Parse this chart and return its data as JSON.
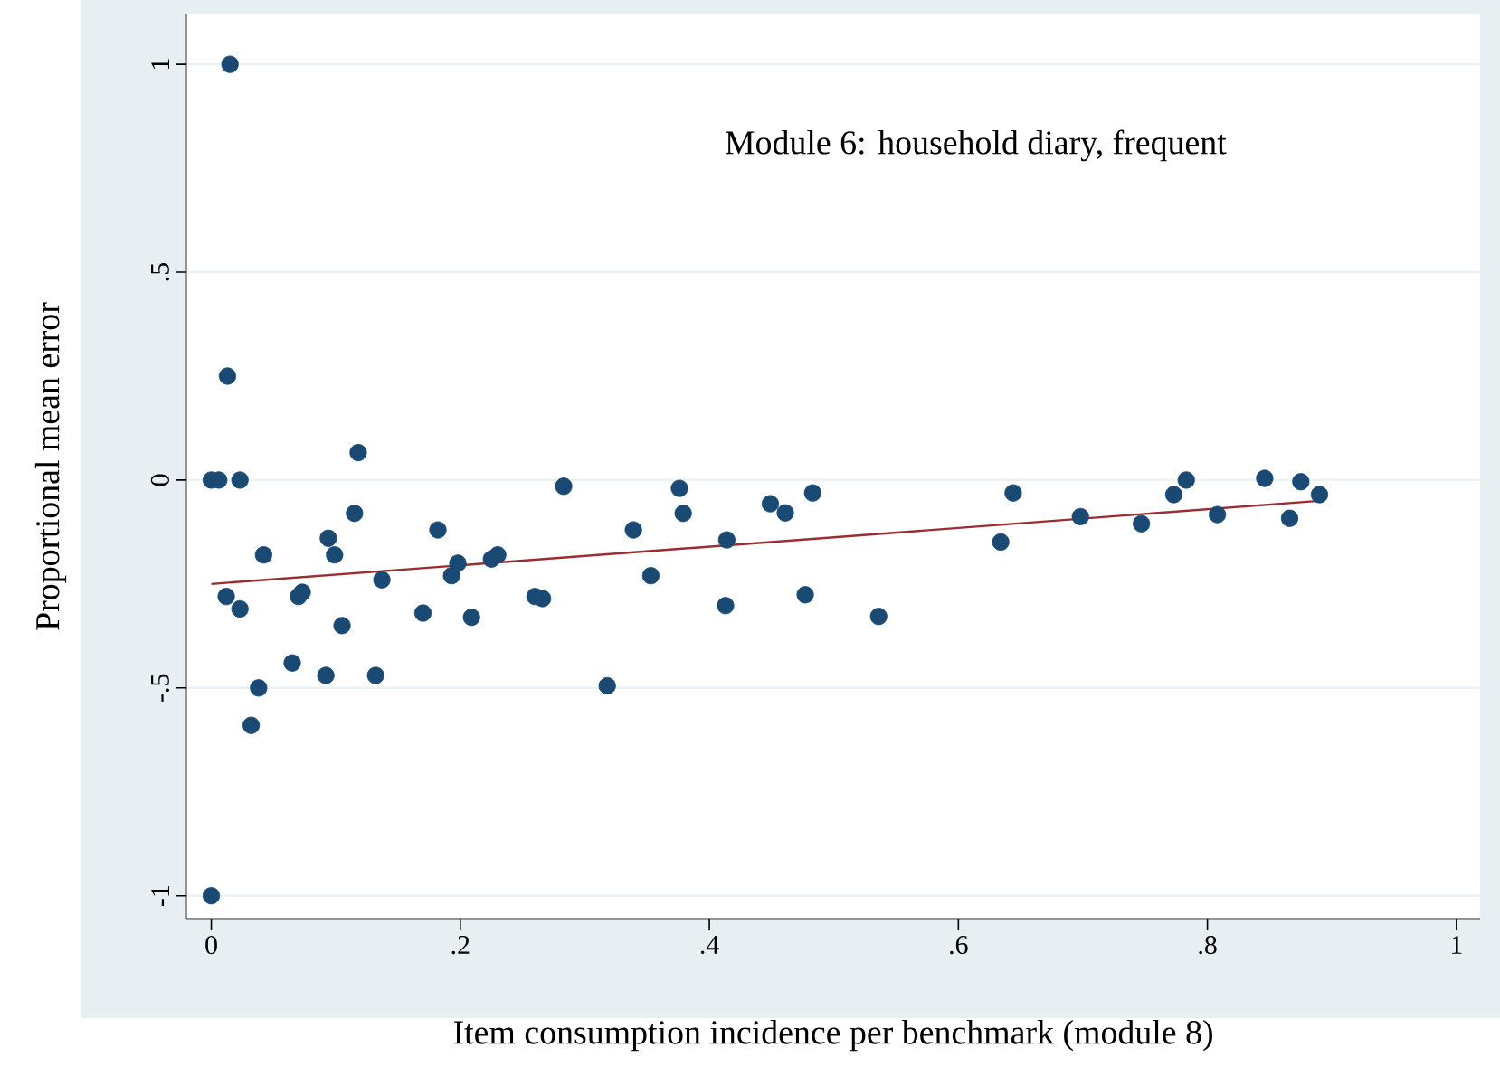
{
  "chart_data": {
    "type": "scatter",
    "xlabel": "Item consumption incidence per benchmark (module 8)",
    "ylabel": "Proportional mean error",
    "annotations": [
      "Module 6: household diary, frequent"
    ],
    "xlim": [
      -0.02,
      1.019
    ],
    "ylim": [
      -1.055,
      1.12
    ],
    "xticks": [
      {
        "value": 0,
        "label": "0"
      },
      {
        "value": 0.2,
        "label": ".2"
      },
      {
        "value": 0.4,
        "label": ".4"
      },
      {
        "value": 0.6,
        "label": ".6"
      },
      {
        "value": 0.8,
        "label": ".8"
      },
      {
        "value": 1,
        "label": "1"
      }
    ],
    "yticks": [
      {
        "value": -1,
        "label": "-1"
      },
      {
        "value": -0.5,
        "label": "-.5"
      },
      {
        "value": 0,
        "label": "0"
      },
      {
        "value": 0.5,
        "label": ".5"
      },
      {
        "value": 1,
        "label": "1"
      }
    ],
    "grid": "y",
    "series": [
      {
        "marker": "circle",
        "color": "#1a4a73",
        "x": [
          0,
          0.015,
          0.013,
          0,
          0.006,
          0.023,
          0.012,
          0.023,
          0.042,
          0.038,
          0.032,
          0.065,
          0.07,
          0.073,
          0.092,
          0.094,
          0.099,
          0.105,
          0.115,
          0.118,
          0.132,
          0.137,
          0.17,
          0.182,
          0.193,
          0.198,
          0.209,
          0.225,
          0.23,
          0.26,
          0.266,
          0.283,
          0.318,
          0.339,
          0.353,
          0.376,
          0.379,
          0.414,
          0.413,
          0.449,
          0.461,
          0.483,
          0.477,
          0.536,
          0.634,
          0.644,
          0.698,
          0.747,
          0.773,
          0.783,
          0.808,
          0.846,
          0.866,
          0.875,
          0.89
        ],
        "values": [
          -1,
          1.0,
          0.25,
          0,
          0,
          0,
          -0.28,
          -0.31,
          -0.18,
          -0.5,
          -0.59,
          -0.44,
          -0.28,
          -0.27,
          -0.47,
          -0.14,
          -0.18,
          -0.35,
          -0.08,
          0.066,
          -0.47,
          -0.24,
          -0.32,
          -0.12,
          -0.23,
          -0.2,
          -0.33,
          -0.19,
          -0.18,
          -0.28,
          -0.285,
          -0.015,
          -0.495,
          -0.12,
          -0.23,
          -0.02,
          -0.08,
          -0.144,
          -0.302,
          -0.057,
          -0.079,
          -0.031,
          -0.276,
          -0.328,
          -0.149,
          -0.031,
          -0.088,
          -0.105,
          -0.035,
          0,
          -0.083,
          0.004,
          -0.092,
          -0.004,
          -0.035
        ]
      },
      {
        "type": "line",
        "marker": "none",
        "color": "#9b2d30",
        "x": [
          0,
          0.89
        ],
        "values": [
          -0.25,
          -0.05
        ]
      }
    ]
  }
}
